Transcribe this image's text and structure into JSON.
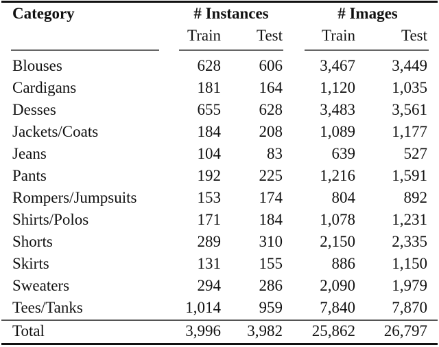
{
  "table": {
    "headers": {
      "category": "Category",
      "instances_group": "# Instances",
      "images_group": "# Images",
      "train": "Train",
      "test": "Test"
    },
    "rows": [
      {
        "category": "Blouses",
        "inst_train": "628",
        "inst_test": "606",
        "img_train": "3,467",
        "img_test": "3,449"
      },
      {
        "category": "Cardigans",
        "inst_train": "181",
        "inst_test": "164",
        "img_train": "1,120",
        "img_test": "1,035"
      },
      {
        "category": "Desses",
        "inst_train": "655",
        "inst_test": "628",
        "img_train": "3,483",
        "img_test": "3,561"
      },
      {
        "category": "Jackets/Coats",
        "inst_train": "184",
        "inst_test": "208",
        "img_train": "1,089",
        "img_test": "1,177"
      },
      {
        "category": "Jeans",
        "inst_train": "104",
        "inst_test": "83",
        "img_train": "639",
        "img_test": "527"
      },
      {
        "category": "Pants",
        "inst_train": "192",
        "inst_test": "225",
        "img_train": "1,216",
        "img_test": "1,591"
      },
      {
        "category": "Rompers/Jumpsuits",
        "inst_train": "153",
        "inst_test": "174",
        "img_train": "804",
        "img_test": "892"
      },
      {
        "category": "Shirts/Polos",
        "inst_train": "171",
        "inst_test": "184",
        "img_train": "1,078",
        "img_test": "1,231"
      },
      {
        "category": "Shorts",
        "inst_train": "289",
        "inst_test": "310",
        "img_train": "2,150",
        "img_test": "2,335"
      },
      {
        "category": "Skirts",
        "inst_train": "131",
        "inst_test": "155",
        "img_train": "886",
        "img_test": "1,150"
      },
      {
        "category": "Sweaters",
        "inst_train": "294",
        "inst_test": "286",
        "img_train": "2,090",
        "img_test": "1,979"
      },
      {
        "category": "Tees/Tanks",
        "inst_train": "1,014",
        "inst_test": "959",
        "img_train": "7,840",
        "img_test": "7,870"
      }
    ],
    "total": {
      "category": "Total",
      "inst_train": "3,996",
      "inst_test": "3,982",
      "img_train": "25,862",
      "img_test": "26,797"
    }
  }
}
